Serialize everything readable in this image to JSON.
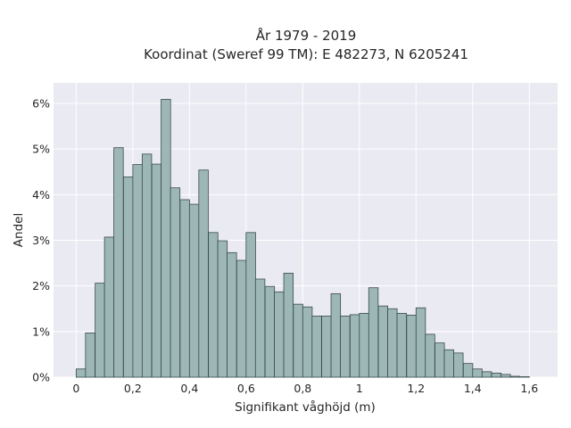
{
  "chart_data": {
    "type": "bar",
    "title": "År 1979 - 2019",
    "subtitle": "Koordinat (Sweref 99 TM): E 482273, N 6205241",
    "xlabel": "Signifikant våghöjd (m)",
    "ylabel": "Andel",
    "xlim": [
      -0.08,
      1.7
    ],
    "ylim": [
      0,
      6.45
    ],
    "grid": true,
    "bin_width": 0.0333,
    "x_ticks": [
      {
        "value": 0,
        "label": "0"
      },
      {
        "value": 0.2,
        "label": "0,2"
      },
      {
        "value": 0.4,
        "label": "0,4"
      },
      {
        "value": 0.6,
        "label": "0,6"
      },
      {
        "value": 0.8,
        "label": "0,8"
      },
      {
        "value": 1.0,
        "label": "1"
      },
      {
        "value": 1.2,
        "label": "1,2"
      },
      {
        "value": 1.4,
        "label": "1,4"
      },
      {
        "value": 1.6,
        "label": "1,6"
      }
    ],
    "y_ticks": [
      {
        "value": 0,
        "label": "0%"
      },
      {
        "value": 1,
        "label": "1%"
      },
      {
        "value": 2,
        "label": "2%"
      },
      {
        "value": 3,
        "label": "3%"
      },
      {
        "value": 4,
        "label": "4%"
      },
      {
        "value": 5,
        "label": "5%"
      },
      {
        "value": 6,
        "label": "6%"
      }
    ],
    "bins": [
      0.0,
      0.033,
      0.067,
      0.1,
      0.133,
      0.167,
      0.2,
      0.233,
      0.267,
      0.3,
      0.333,
      0.367,
      0.4,
      0.433,
      0.467,
      0.5,
      0.533,
      0.567,
      0.6,
      0.633,
      0.667,
      0.7,
      0.733,
      0.767,
      0.8,
      0.833,
      0.867,
      0.9,
      0.933,
      0.967,
      1.0,
      1.033,
      1.067,
      1.1,
      1.133,
      1.167,
      1.2,
      1.233,
      1.267,
      1.3,
      1.333,
      1.367,
      1.4,
      1.433,
      1.467,
      1.5,
      1.533,
      1.567
    ],
    "values": [
      0.18,
      0.97,
      2.06,
      3.07,
      5.03,
      4.39,
      4.66,
      4.89,
      4.67,
      6.09,
      4.15,
      3.89,
      3.79,
      4.54,
      3.17,
      2.99,
      2.73,
      2.56,
      3.17,
      2.15,
      1.99,
      1.87,
      2.28,
      1.6,
      1.54,
      1.34,
      1.34,
      1.83,
      1.34,
      1.37,
      1.4,
      1.96,
      1.56,
      1.5,
      1.4,
      1.36,
      1.52,
      0.94,
      0.75,
      0.6,
      0.53,
      0.3,
      0.18,
      0.12,
      0.09,
      0.06,
      0.02,
      0.01
    ],
    "colors": {
      "bar_fill": "#9db7b7",
      "bar_stroke": "#3a4a4a",
      "plot_bg": "#eaeaf2",
      "grid": "#ffffff"
    }
  }
}
